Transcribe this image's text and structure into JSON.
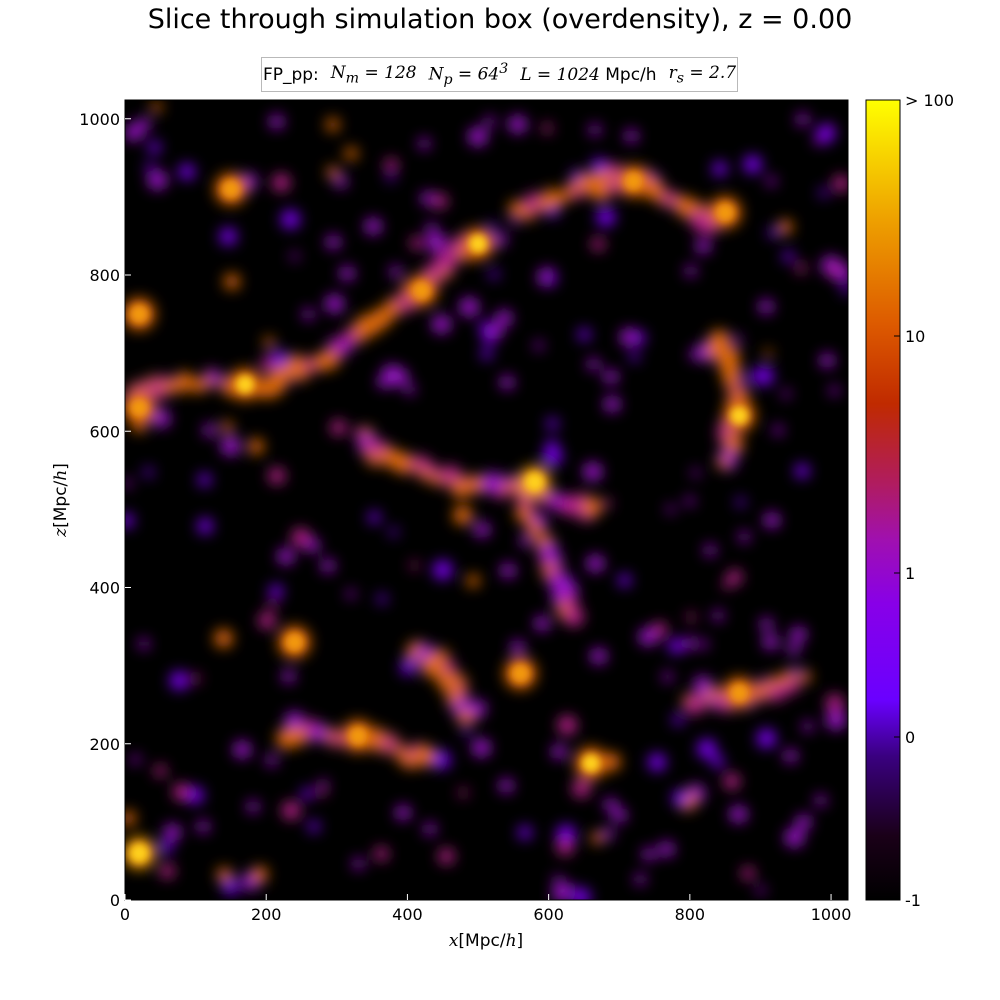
{
  "title": "Slice through simulation box (overdensity), z = 0.00",
  "legend": {
    "label": "FP_pp:",
    "nm": "N_m = 128",
    "np": "N_p = 64^3",
    "L": "L = 1024 Mpc/h",
    "rs": "r_s = 2.7"
  },
  "chart_data": {
    "type": "heatmap",
    "title": "Slice through simulation box (overdensity), z = 0.00",
    "xlabel": "x[Mpc/h]",
    "ylabel": "z[Mpc/h]",
    "xlim": [
      0,
      1024
    ],
    "ylim": [
      0,
      1024
    ],
    "x_ticks": [
      0,
      200,
      400,
      600,
      800,
      1000
    ],
    "y_ticks": [
      0,
      200,
      400,
      600,
      800,
      1000
    ],
    "colormap": "gnuplot",
    "colorbar": {
      "tick_labels": [
        "-1",
        "0",
        "1",
        "10",
        "> 100"
      ],
      "scale": "log(1 + delta)"
    },
    "grid": false,
    "features": [
      {
        "name": "filament",
        "points": [
          [
            10,
            650
          ],
          [
            60,
            660
          ],
          [
            120,
            665
          ],
          [
            170,
            660
          ],
          [
            210,
            660
          ],
          [
            245,
            680
          ],
          [
            300,
            705
          ],
          [
            350,
            740
          ],
          [
            400,
            770
          ],
          [
            430,
            790
          ]
        ]
      },
      {
        "name": "filament",
        "points": [
          [
            400,
            770
          ],
          [
            440,
            800
          ],
          [
            470,
            830
          ],
          [
            500,
            845
          ]
        ]
      },
      {
        "name": "filament",
        "points": [
          [
            560,
            880
          ],
          [
            610,
            900
          ],
          [
            660,
            915
          ],
          [
            700,
            920
          ],
          [
            740,
            915
          ],
          [
            790,
            890
          ],
          [
            830,
            870
          ]
        ]
      },
      {
        "name": "filament",
        "points": [
          [
            330,
            600
          ],
          [
            360,
            570
          ],
          [
            400,
            560
          ],
          [
            450,
            540
          ],
          [
            500,
            530
          ],
          [
            560,
            525
          ],
          [
            620,
            510
          ],
          [
            660,
            500
          ]
        ]
      },
      {
        "name": "filament",
        "points": [
          [
            840,
            720
          ],
          [
            860,
            680
          ],
          [
            870,
            640
          ],
          [
            860,
            600
          ],
          [
            850,
            560
          ]
        ]
      },
      {
        "name": "filament",
        "points": [
          [
            560,
            520
          ],
          [
            580,
            480
          ],
          [
            600,
            440
          ],
          [
            620,
            400
          ],
          [
            630,
            360
          ]
        ]
      },
      {
        "name": "filament",
        "points": [
          [
            220,
            200
          ],
          [
            260,
            215
          ],
          [
            300,
            210
          ],
          [
            340,
            205
          ],
          [
            380,
            195
          ],
          [
            420,
            180
          ]
        ]
      },
      {
        "name": "filament",
        "points": [
          [
            800,
            250
          ],
          [
            840,
            260
          ],
          [
            880,
            255
          ],
          [
            920,
            270
          ],
          [
            960,
            280
          ]
        ]
      },
      {
        "name": "filament",
        "points": [
          [
            420,
            320
          ],
          [
            450,
            300
          ],
          [
            470,
            270
          ],
          [
            480,
            240
          ]
        ]
      }
    ],
    "clusters": [
      {
        "x": 20,
        "y": 60,
        "density": 60
      },
      {
        "x": 500,
        "y": 840,
        "density": 40
      },
      {
        "x": 580,
        "y": 535,
        "density": 50
      },
      {
        "x": 170,
        "y": 660,
        "density": 40
      },
      {
        "x": 870,
        "y": 620,
        "density": 40
      },
      {
        "x": 850,
        "y": 880,
        "density": 30
      },
      {
        "x": 660,
        "y": 175,
        "density": 40
      },
      {
        "x": 870,
        "y": 265,
        "density": 30
      },
      {
        "x": 20,
        "y": 750,
        "density": 25
      },
      {
        "x": 420,
        "y": 780,
        "density": 25
      },
      {
        "x": 330,
        "y": 210,
        "density": 25
      },
      {
        "x": 720,
        "y": 920,
        "density": 20
      },
      {
        "x": 560,
        "y": 290,
        "density": 20
      },
      {
        "x": 20,
        "y": 630,
        "density": 15
      },
      {
        "x": 240,
        "y": 330,
        "density": 15
      },
      {
        "x": 150,
        "y": 910,
        "density": 15
      }
    ]
  }
}
